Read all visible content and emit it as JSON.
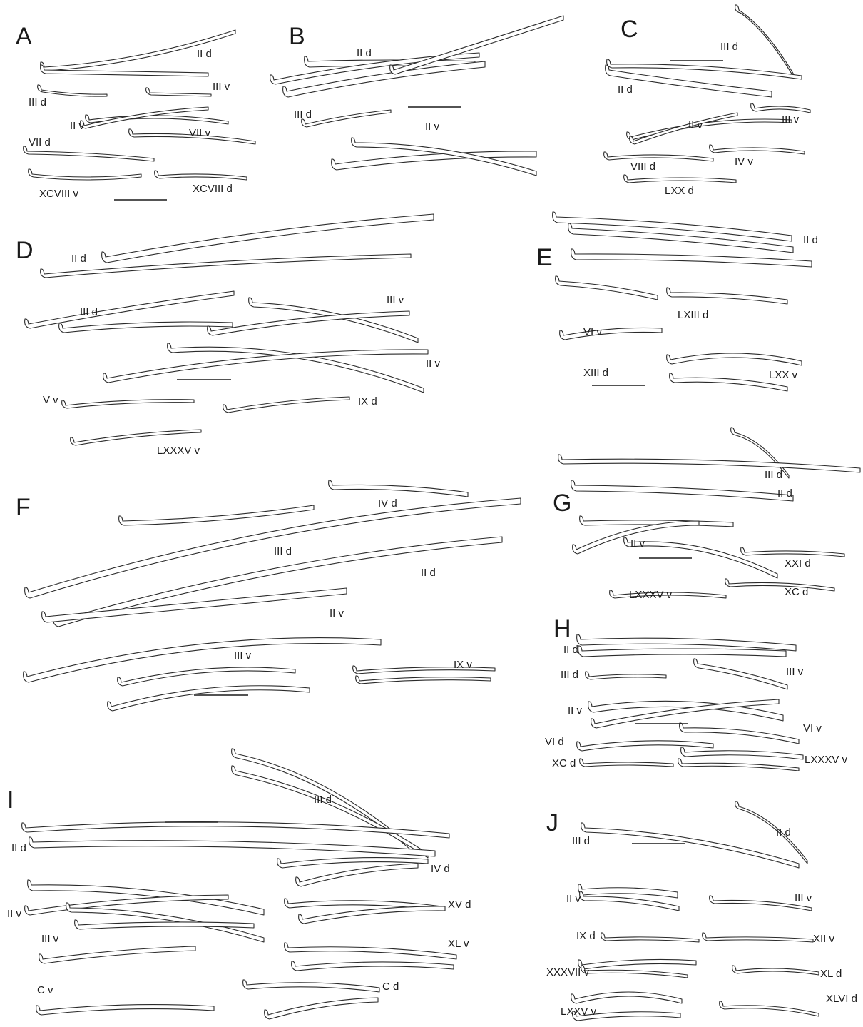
{
  "panels": [
    {
      "letter": "A",
      "labels": [
        "II d",
        "III v",
        "III d",
        "II v",
        "VII v",
        "VII d",
        "XCVIII v",
        "XCVIII d"
      ]
    },
    {
      "letter": "B",
      "labels": [
        "II d",
        "III d",
        "II v"
      ]
    },
    {
      "letter": "C",
      "labels": [
        "III d",
        "II d",
        "II v",
        "III v",
        "VIII d",
        "IV v",
        "LXX d"
      ]
    },
    {
      "letter": "D",
      "labels": [
        "II d",
        "III d",
        "III v",
        "II v",
        "V v",
        "IX d",
        "LXXXV v"
      ]
    },
    {
      "letter": "E",
      "labels": [
        "II d",
        "VI v",
        "LXIII d",
        "XIII d",
        "LXX v"
      ]
    },
    {
      "letter": "F",
      "labels": [
        "IV d",
        "III d",
        "II d",
        "II v",
        "III v",
        "IX v"
      ]
    },
    {
      "letter": "G",
      "labels": [
        "III d",
        "II d",
        "II v",
        "XXI d",
        "LXXXV v",
        "XC d"
      ]
    },
    {
      "letter": "H",
      "labels": [
        "II d",
        "III d",
        "III v",
        "II v",
        "VI d",
        "VI v",
        "XC d",
        "LXXXV v"
      ]
    },
    {
      "letter": "I",
      "labels": [
        "III d",
        "II d",
        "IV d",
        "II v",
        "XV d",
        "III v",
        "XL v",
        "C v",
        "C d"
      ]
    },
    {
      "letter": "J",
      "labels": [
        "II d",
        "III d",
        "II v",
        "III v",
        "IX d",
        "XII v",
        "XXXVII v",
        "XL d",
        "LXXV v",
        "XLVI d"
      ]
    }
  ]
}
